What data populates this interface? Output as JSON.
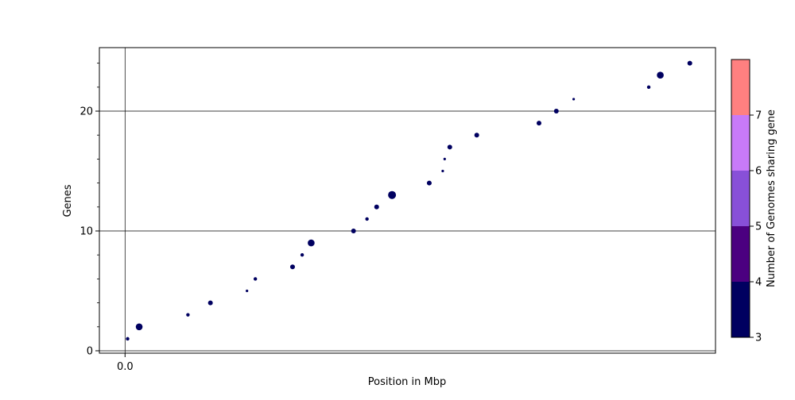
{
  "chart_data": {
    "type": "scatter",
    "title": "",
    "xlabel": "Position in Mbp",
    "ylabel": "Genes",
    "x_ticks": [
      0.0
    ],
    "x_tick_labels": [
      "0.0"
    ],
    "xlim": [
      -0.004,
      0.092
    ],
    "ylim": [
      -0.2,
      25.3
    ],
    "y_ticks": [
      0,
      10,
      20
    ],
    "y_minor_ticks": [
      2,
      4,
      6,
      8,
      12,
      14,
      16,
      18,
      22,
      24
    ],
    "grid": "horizontal at y ticks; vertical at x = 0",
    "points": [
      {
        "x": 0.0004,
        "y": 1,
        "sharing": 3,
        "size": "small"
      },
      {
        "x": 0.0022,
        "y": 2,
        "sharing": 3,
        "size": "large"
      },
      {
        "x": 0.0098,
        "y": 3,
        "sharing": 3,
        "size": "small"
      },
      {
        "x": 0.0133,
        "y": 4,
        "sharing": 3,
        "size": "medium"
      },
      {
        "x": 0.019,
        "y": 5,
        "sharing": 3,
        "size": "tiny"
      },
      {
        "x": 0.0203,
        "y": 6,
        "sharing": 3,
        "size": "small"
      },
      {
        "x": 0.0261,
        "y": 7,
        "sharing": 3,
        "size": "medium"
      },
      {
        "x": 0.0276,
        "y": 8,
        "sharing": 3,
        "size": "small"
      },
      {
        "x": 0.029,
        "y": 9,
        "sharing": 3,
        "size": "large"
      },
      {
        "x": 0.0356,
        "y": 10,
        "sharing": 3,
        "size": "medium"
      },
      {
        "x": 0.0377,
        "y": 11,
        "sharing": 3,
        "size": "small"
      },
      {
        "x": 0.0392,
        "y": 12,
        "sharing": 3,
        "size": "medium"
      },
      {
        "x": 0.0416,
        "y": 13,
        "sharing": 3,
        "size": "xlarge"
      },
      {
        "x": 0.0474,
        "y": 14,
        "sharing": 3,
        "size": "medium"
      },
      {
        "x": 0.0495,
        "y": 15,
        "sharing": 3,
        "size": "tiny"
      },
      {
        "x": 0.0498,
        "y": 16,
        "sharing": 3,
        "size": "tiny"
      },
      {
        "x": 0.0506,
        "y": 17,
        "sharing": 3,
        "size": "medium"
      },
      {
        "x": 0.0548,
        "y": 18,
        "sharing": 3,
        "size": "medium"
      },
      {
        "x": 0.0645,
        "y": 19,
        "sharing": 3,
        "size": "medium"
      },
      {
        "x": 0.0672,
        "y": 20,
        "sharing": 3,
        "size": "medium"
      },
      {
        "x": 0.0699,
        "y": 21,
        "sharing": 3,
        "size": "tiny"
      },
      {
        "x": 0.0816,
        "y": 22,
        "sharing": 3,
        "size": "small"
      },
      {
        "x": 0.0834,
        "y": 23,
        "sharing": 3,
        "size": "large"
      },
      {
        "x": 0.088,
        "y": 24,
        "sharing": 3,
        "size": "medium"
      }
    ],
    "colorbar": {
      "label": "Number of Genomes sharing gene",
      "ticks": [
        3,
        4,
        5,
        6,
        7
      ],
      "range": [
        3,
        8
      ],
      "bands": [
        {
          "from": 3,
          "to": 4,
          "color": "#000060"
        },
        {
          "from": 4,
          "to": 5,
          "color": "#4b0080"
        },
        {
          "from": 5,
          "to": 6,
          "color": "#8850d8"
        },
        {
          "from": 6,
          "to": 7,
          "color": "#c87af8"
        },
        {
          "from": 7,
          "to": 8,
          "color": "#ff8080"
        }
      ]
    }
  }
}
